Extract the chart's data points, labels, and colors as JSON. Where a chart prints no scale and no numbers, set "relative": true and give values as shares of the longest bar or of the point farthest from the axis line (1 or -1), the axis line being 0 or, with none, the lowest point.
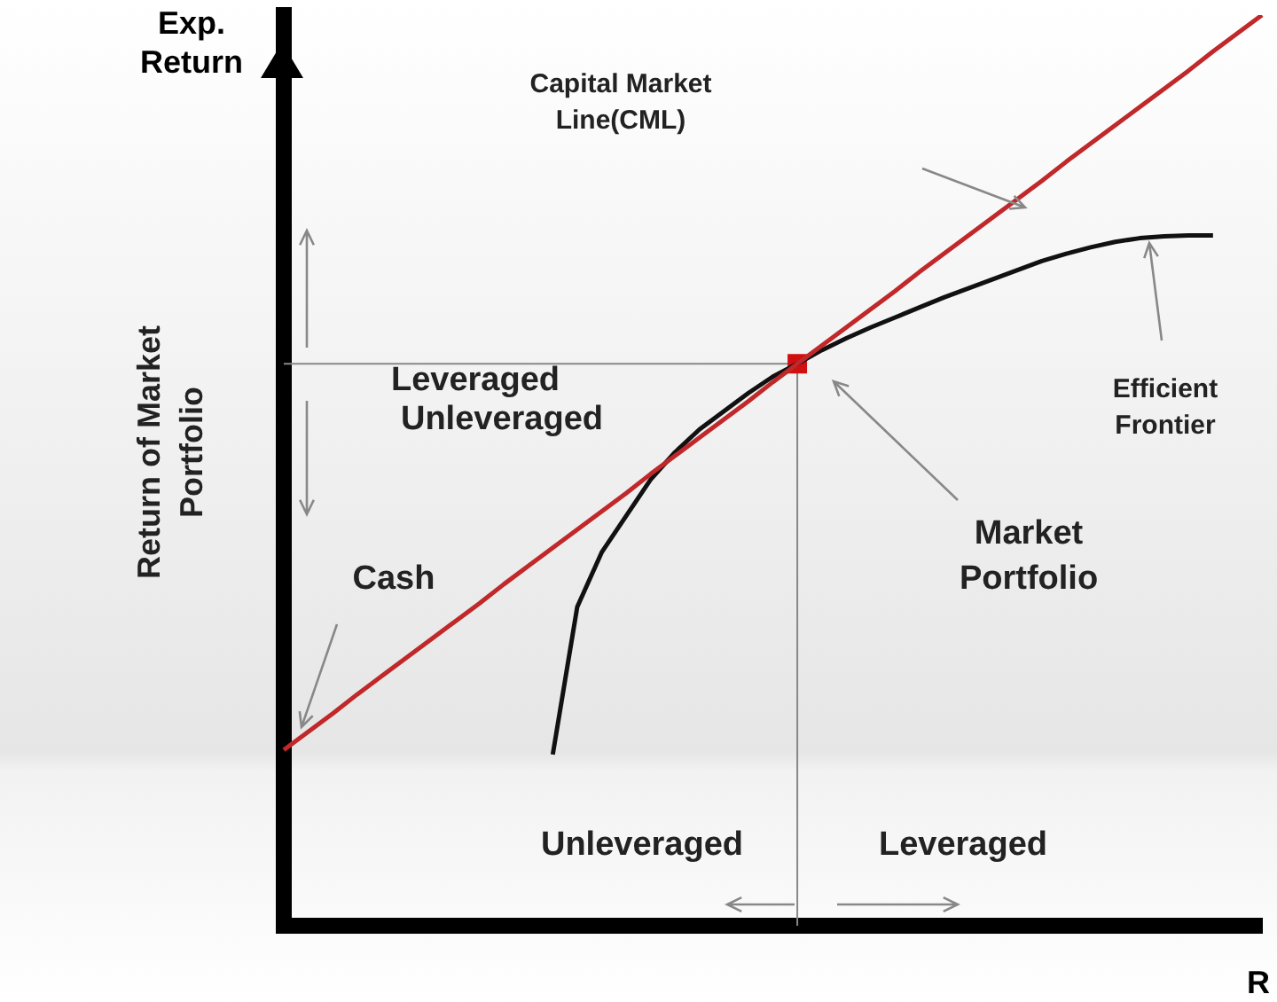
{
  "chart_data": {
    "type": "line",
    "relative": true,
    "ylabel": "Exp. Return",
    "xlabel": "R",
    "legend": false,
    "marker": "none",
    "categories": [
      null,
      null,
      null,
      null,
      null,
      null,
      null,
      null,
      null,
      null,
      null,
      null,
      null,
      null,
      null,
      null,
      null,
      null,
      null,
      null,
      null,
      null,
      null,
      null,
      null,
      null,
      null,
      null,
      null,
      null,
      null,
      null,
      null,
      null,
      null,
      null,
      null,
      null,
      null,
      null,
      null
    ],
    "series": [
      {
        "color": "#c0282a",
        "values": [
          0.193,
          0.213,
          0.233,
          0.254,
          0.274,
          0.294,
          0.314,
          0.334,
          0.354,
          0.375,
          0.395,
          0.415,
          0.435,
          0.455,
          0.475,
          0.496,
          0.516,
          0.536,
          0.556,
          0.576,
          0.597,
          0.617,
          0.637,
          0.657,
          0.677,
          0.697,
          0.718,
          0.738,
          0.758,
          0.778,
          0.798,
          0.818,
          0.839,
          0.859,
          0.879,
          0.899,
          0.919,
          0.939,
          0.96,
          0.98,
          1.0
        ]
      },
      {
        "color": "#111111",
        "values": [
          null,
          null,
          null,
          null,
          null,
          null,
          null,
          null,
          null,
          null,
          null,
          0.188,
          0.35,
          0.41,
          0.45,
          0.49,
          0.52,
          0.545,
          0.565,
          0.585,
          0.603,
          0.617,
          0.632,
          0.645,
          0.657,
          0.668,
          0.679,
          0.69,
          0.7,
          0.71,
          0.72,
          0.73,
          0.738,
          0.745,
          0.751,
          0.755,
          0.757,
          0.758,
          0.758,
          null,
          null
        ]
      },
      {
        "color": "#d01010",
        "marker": "square",
        "values": [
          null,
          null,
          null,
          null,
          null,
          null,
          null,
          null,
          null,
          null,
          null,
          null,
          null,
          null,
          null,
          null,
          null,
          null,
          null,
          null,
          null,
          0.617,
          null,
          null,
          null,
          null,
          null,
          null,
          null,
          null,
          null,
          null,
          null,
          null,
          null,
          null,
          null,
          null,
          null,
          null,
          null
        ]
      }
    ],
    "ref_lines": [
      {
        "axis": "y",
        "value": 0.617,
        "color": "#888888"
      }
    ],
    "annotations": [
      "Capital Market Line(CML)",
      "Leveraged",
      "Unleveraged",
      "Efficient Frontier",
      "Market Portfolio",
      "Cash",
      "Unleveraged",
      "Leveraged",
      "Return of Market Portfolio"
    ]
  }
}
